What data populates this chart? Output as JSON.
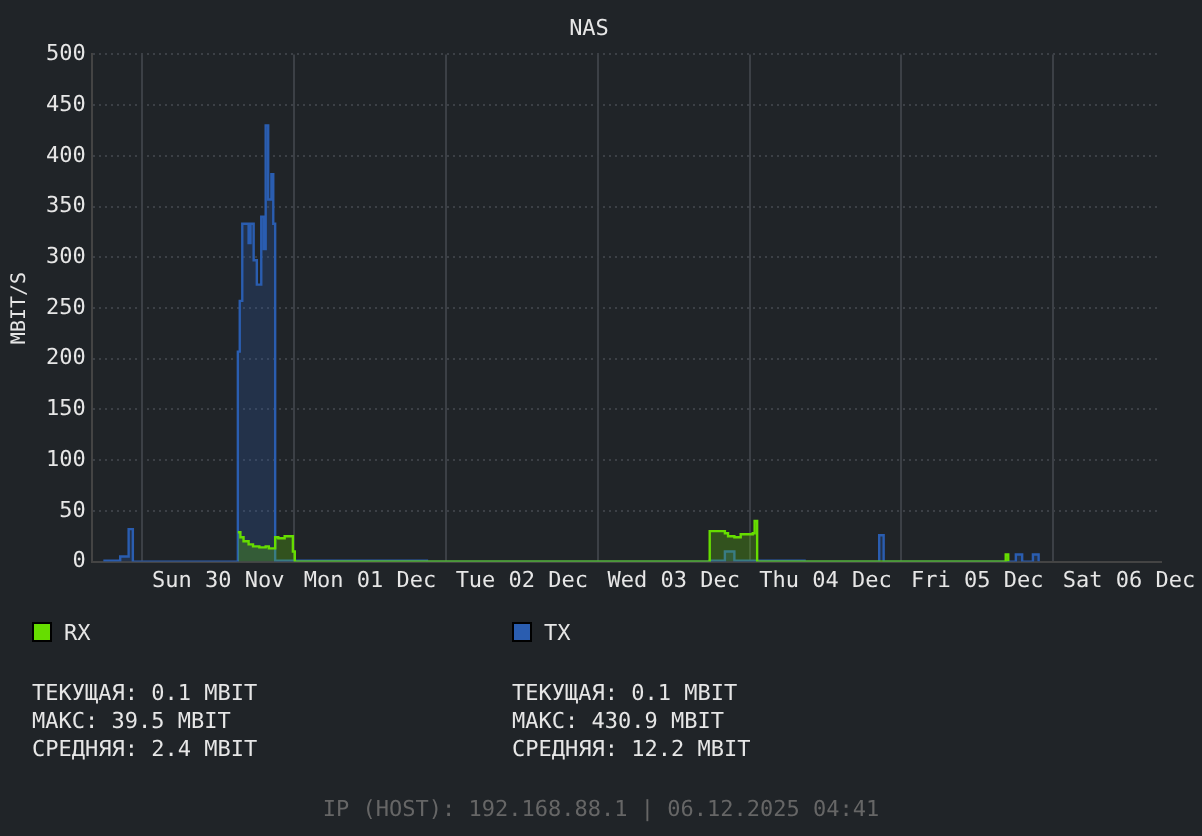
{
  "chart_data": {
    "type": "step",
    "title": "NAS",
    "ylabel": "MBIT/S",
    "xlim": [
      "2025-11-29T16:00",
      "2025-12-06T17:00"
    ],
    "xticks": [
      {
        "value": "2025-11-30T00:00",
        "label": null
      },
      {
        "value": "2025-11-30T12:00",
        "label": "Sun 30 Nov"
      },
      {
        "value": "2025-12-01T00:00",
        "label": null
      },
      {
        "value": "2025-12-01T12:00",
        "label": "Mon 01 Dec"
      },
      {
        "value": "2025-12-02T00:00",
        "label": null
      },
      {
        "value": "2025-12-02T12:00",
        "label": "Tue 02 Dec"
      },
      {
        "value": "2025-12-03T00:00",
        "label": null
      },
      {
        "value": "2025-12-03T12:00",
        "label": "Wed 03 Dec"
      },
      {
        "value": "2025-12-04T00:00",
        "label": null
      },
      {
        "value": "2025-12-04T12:00",
        "label": "Thu 04 Dec"
      },
      {
        "value": "2025-12-05T00:00",
        "label": null
      },
      {
        "value": "2025-12-05T12:00",
        "label": "Fri 05 Dec"
      },
      {
        "value": "2025-12-06T00:00",
        "label": null
      },
      {
        "value": "2025-12-06T12:00",
        "label": "Sat 06 Dec"
      }
    ],
    "ylim": [
      0,
      500
    ],
    "yticks": [
      0,
      50,
      100,
      150,
      200,
      250,
      300,
      350,
      400,
      450,
      500
    ],
    "grid": true,
    "legend": "bottom",
    "series": [
      {
        "name": "TX",
        "color": "#2a5db0",
        "x": [
          "2025-11-29T17:50",
          "2025-11-29T20:30",
          "2025-11-29T21:50",
          "2025-11-29T22:30",
          "2025-11-30T15:06",
          "2025-11-30T15:24",
          "2025-11-30T15:48",
          "2025-11-30T16:48",
          "2025-11-30T17:06",
          "2025-11-30T17:36",
          "2025-11-30T18:06",
          "2025-11-30T18:48",
          "2025-11-30T19:12",
          "2025-11-30T19:30",
          "2025-11-30T19:54",
          "2025-11-30T20:24",
          "2025-11-30T20:42",
          "2025-11-30T21:00",
          "2025-12-01T21:00",
          "2025-12-03T17:42",
          "2025-12-03T20:06",
          "2025-12-03T21:36",
          "2025-12-04T08:42",
          "2025-12-04T20:30",
          "2025-12-04T21:12",
          "2025-12-05T18:06",
          "2025-12-05T19:06",
          "2025-12-05T20:48",
          "2025-12-05T21:42"
        ],
        "values": [
          1,
          5,
          32,
          0,
          207,
          257,
          333,
          314,
          333,
          297,
          273,
          340,
          308,
          430,
          357,
          382,
          333,
          1,
          0,
          1,
          10,
          1,
          0,
          26,
          0,
          7,
          0,
          7,
          0
        ]
      },
      {
        "name": "RX",
        "color": "#66dd00",
        "x": [
          "2025-11-30T15:06",
          "2025-11-30T15:30",
          "2025-11-30T16:00",
          "2025-11-30T16:48",
          "2025-11-30T17:30",
          "2025-11-30T18:30",
          "2025-11-30T19:30",
          "2025-11-30T20:00",
          "2025-11-30T21:00",
          "2025-11-30T21:30",
          "2025-11-30T22:30",
          "2025-11-30T23:48",
          "2025-12-01T00:06",
          "2025-12-03T17:42",
          "2025-12-03T20:06",
          "2025-12-03T20:36",
          "2025-12-03T21:36",
          "2025-12-03T22:36",
          "2025-12-04T00:30",
          "2025-12-04T00:48",
          "2025-12-04T01:12",
          "2025-12-05T16:30",
          "2025-12-05T16:54"
        ],
        "values": [
          29,
          24,
          20,
          17,
          15,
          14,
          15,
          13,
          24,
          23,
          25,
          10,
          0,
          30,
          28,
          25,
          24,
          27,
          28,
          40,
          0,
          7,
          0
        ]
      }
    ],
    "annotations": [
      "ТЕКУЩАЯ: 0.1 MBIT",
      "МАКС: 39.5 MBIT",
      "СРЕДНЯЯ: 2.4 MBIT",
      "ТЕКУЩАЯ: 0.1 MBIT",
      "МАКС: 430.9 MBIT",
      "СРЕДНЯЯ: 12.2 MBIT",
      "IP (HOST): 192.168.88.1 | 06.12.2025 04:41"
    ]
  }
}
